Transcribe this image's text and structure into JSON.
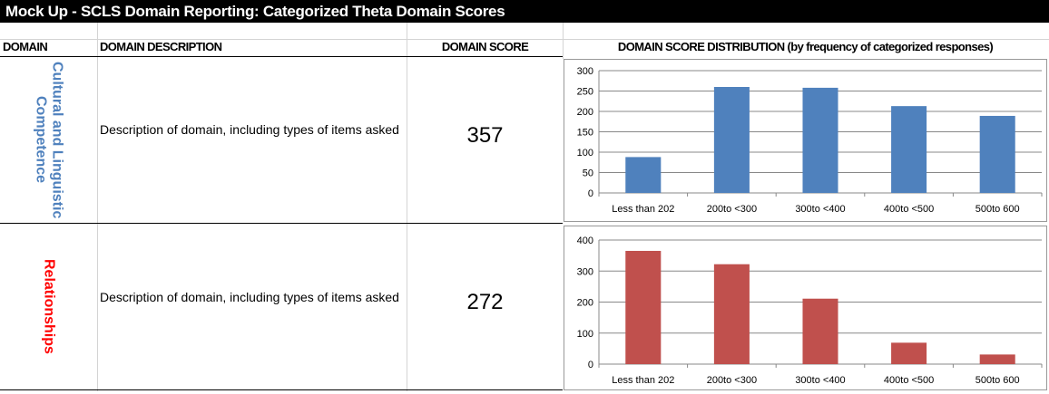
{
  "title": "Mock Up - SCLS Domain Reporting: Categorized Theta Domain Scores",
  "headers": {
    "domain": "DOMAIN",
    "description": "DOMAIN DESCRIPTION",
    "score": "DOMAIN SCORE",
    "distribution": "DOMAIN SCORE DISTRIBUTION (by frequency of categorized responses)"
  },
  "rows": [
    {
      "domain": "Cultural and Linguistic Competence",
      "domain_color": "#4f81bd",
      "description": "Description of domain, including types of items asked",
      "score": "357"
    },
    {
      "domain": "Relationships",
      "domain_color": "#ff0000",
      "description": "Description of domain, including types of items asked",
      "score": "272"
    }
  ],
  "chart_data": [
    {
      "type": "bar",
      "categories": [
        "Less than 202",
        "200to <300",
        "300to <400",
        "400to <500",
        "500to 600"
      ],
      "values": [
        88,
        260,
        258,
        213,
        189
      ],
      "color": "#4f81bd",
      "ylim": [
        0,
        300
      ],
      "yticks": [
        0,
        50,
        100,
        150,
        200,
        250,
        300
      ],
      "grid": true
    },
    {
      "type": "bar",
      "categories": [
        "Less than 202",
        "200to <300",
        "300to <400",
        "400to <500",
        "500to 600"
      ],
      "values": [
        365,
        322,
        211,
        69,
        31
      ],
      "color": "#c0504d",
      "ylim": [
        0,
        400
      ],
      "yticks": [
        0,
        100,
        200,
        300,
        400
      ],
      "grid": true
    }
  ]
}
